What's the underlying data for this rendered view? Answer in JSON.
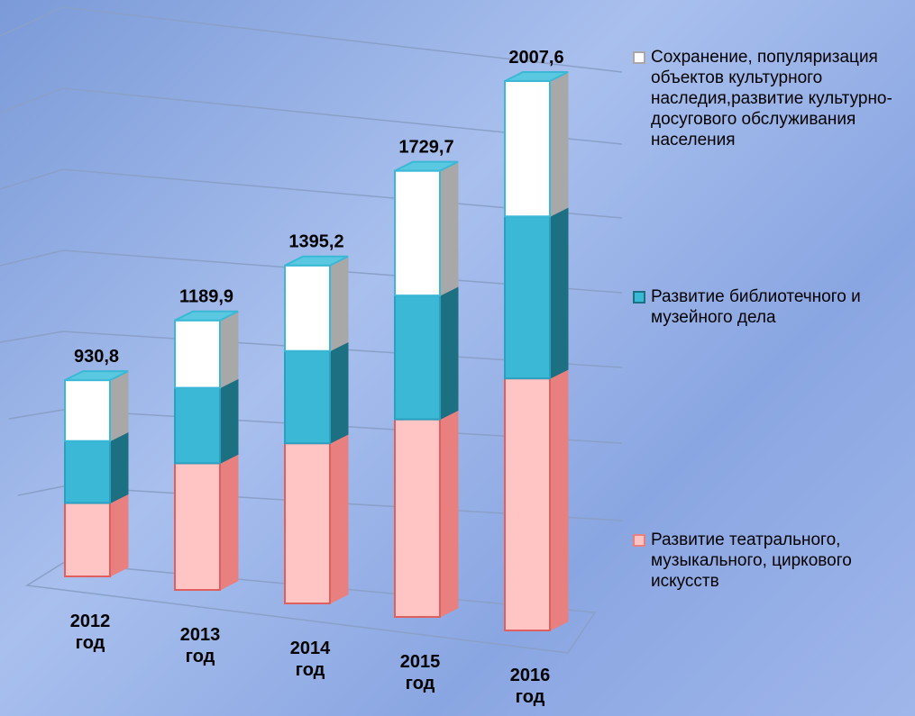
{
  "chart_data": {
    "type": "bar3d",
    "categories": [
      "2012 год",
      "2013 год",
      "2014 год",
      "2015 год",
      "2016 год"
    ],
    "series": [
      {
        "name": "Развитие театрального, музыкального, циркового искусств",
        "color": "#ffc4c4",
        "side": "#e88080",
        "values": [
          348,
          559,
          661,
          766,
          921
        ]
      },
      {
        "name": "Развитие библиотечного  и музейного дела",
        "color": "#3ab8d6",
        "side": "#1d6f82",
        "values": [
          294,
          333,
          381,
          480,
          592
        ]
      },
      {
        "name": "Сохранение, популяризация объектов культурного наследия,развитие культурно-досугового обслуживания населения",
        "color": "#ffffff",
        "side": "#a8a8a8",
        "values": [
          288.8,
          297.9,
          353.2,
          483.7,
          494.6
        ]
      }
    ],
    "totals": {
      "values": [
        930.8,
        1189.9,
        1395.2,
        1729.7,
        2007.6
      ],
      "value_labels": [
        "930,8",
        "1189,9",
        "1395,2",
        "1729,7",
        "2007,6"
      ]
    }
  }
}
